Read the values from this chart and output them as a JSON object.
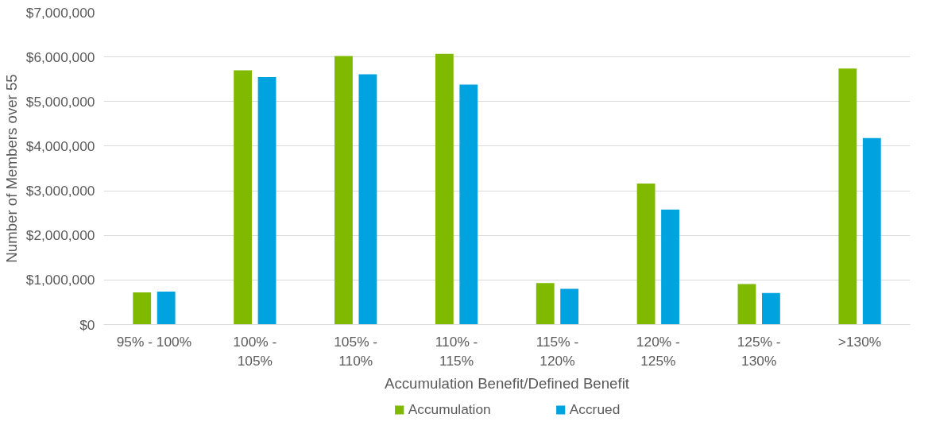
{
  "chart_data": {
    "type": "bar",
    "xlabel": "Accumulation Benefit/Defined Benefit",
    "ylabel": "Number of Members over 55",
    "categories": [
      "95% - 100%",
      "100% - 105%",
      "105% - 110%",
      "110% - 115%",
      "115% - 120%",
      "120% - 125%",
      "125% - 130%",
      ">130%"
    ],
    "series": [
      {
        "name": "Accumulation",
        "color": "#7fba00",
        "values": [
          720000,
          5700000,
          6020000,
          6070000,
          930000,
          3160000,
          910000,
          5740000
        ]
      },
      {
        "name": "Accrued",
        "color": "#00a2e0",
        "values": [
          740000,
          5550000,
          5610000,
          5380000,
          800000,
          2580000,
          710000,
          4180000
        ]
      }
    ],
    "ylim": [
      0,
      7000000
    ],
    "yticks": [
      {
        "value": 0,
        "label": "$0"
      },
      {
        "value": 1000000,
        "label": "$1,000,000"
      },
      {
        "value": 2000000,
        "label": "$2,000,000"
      },
      {
        "value": 3000000,
        "label": "$3,000,000"
      },
      {
        "value": 4000000,
        "label": "$4,000,000"
      },
      {
        "value": 5000000,
        "label": "$5,000,000"
      },
      {
        "value": 6000000,
        "label": "$6,000,000"
      },
      {
        "value": 7000000,
        "label": "$7,000,000"
      }
    ],
    "grid": "y",
    "legend": "bottom"
  }
}
